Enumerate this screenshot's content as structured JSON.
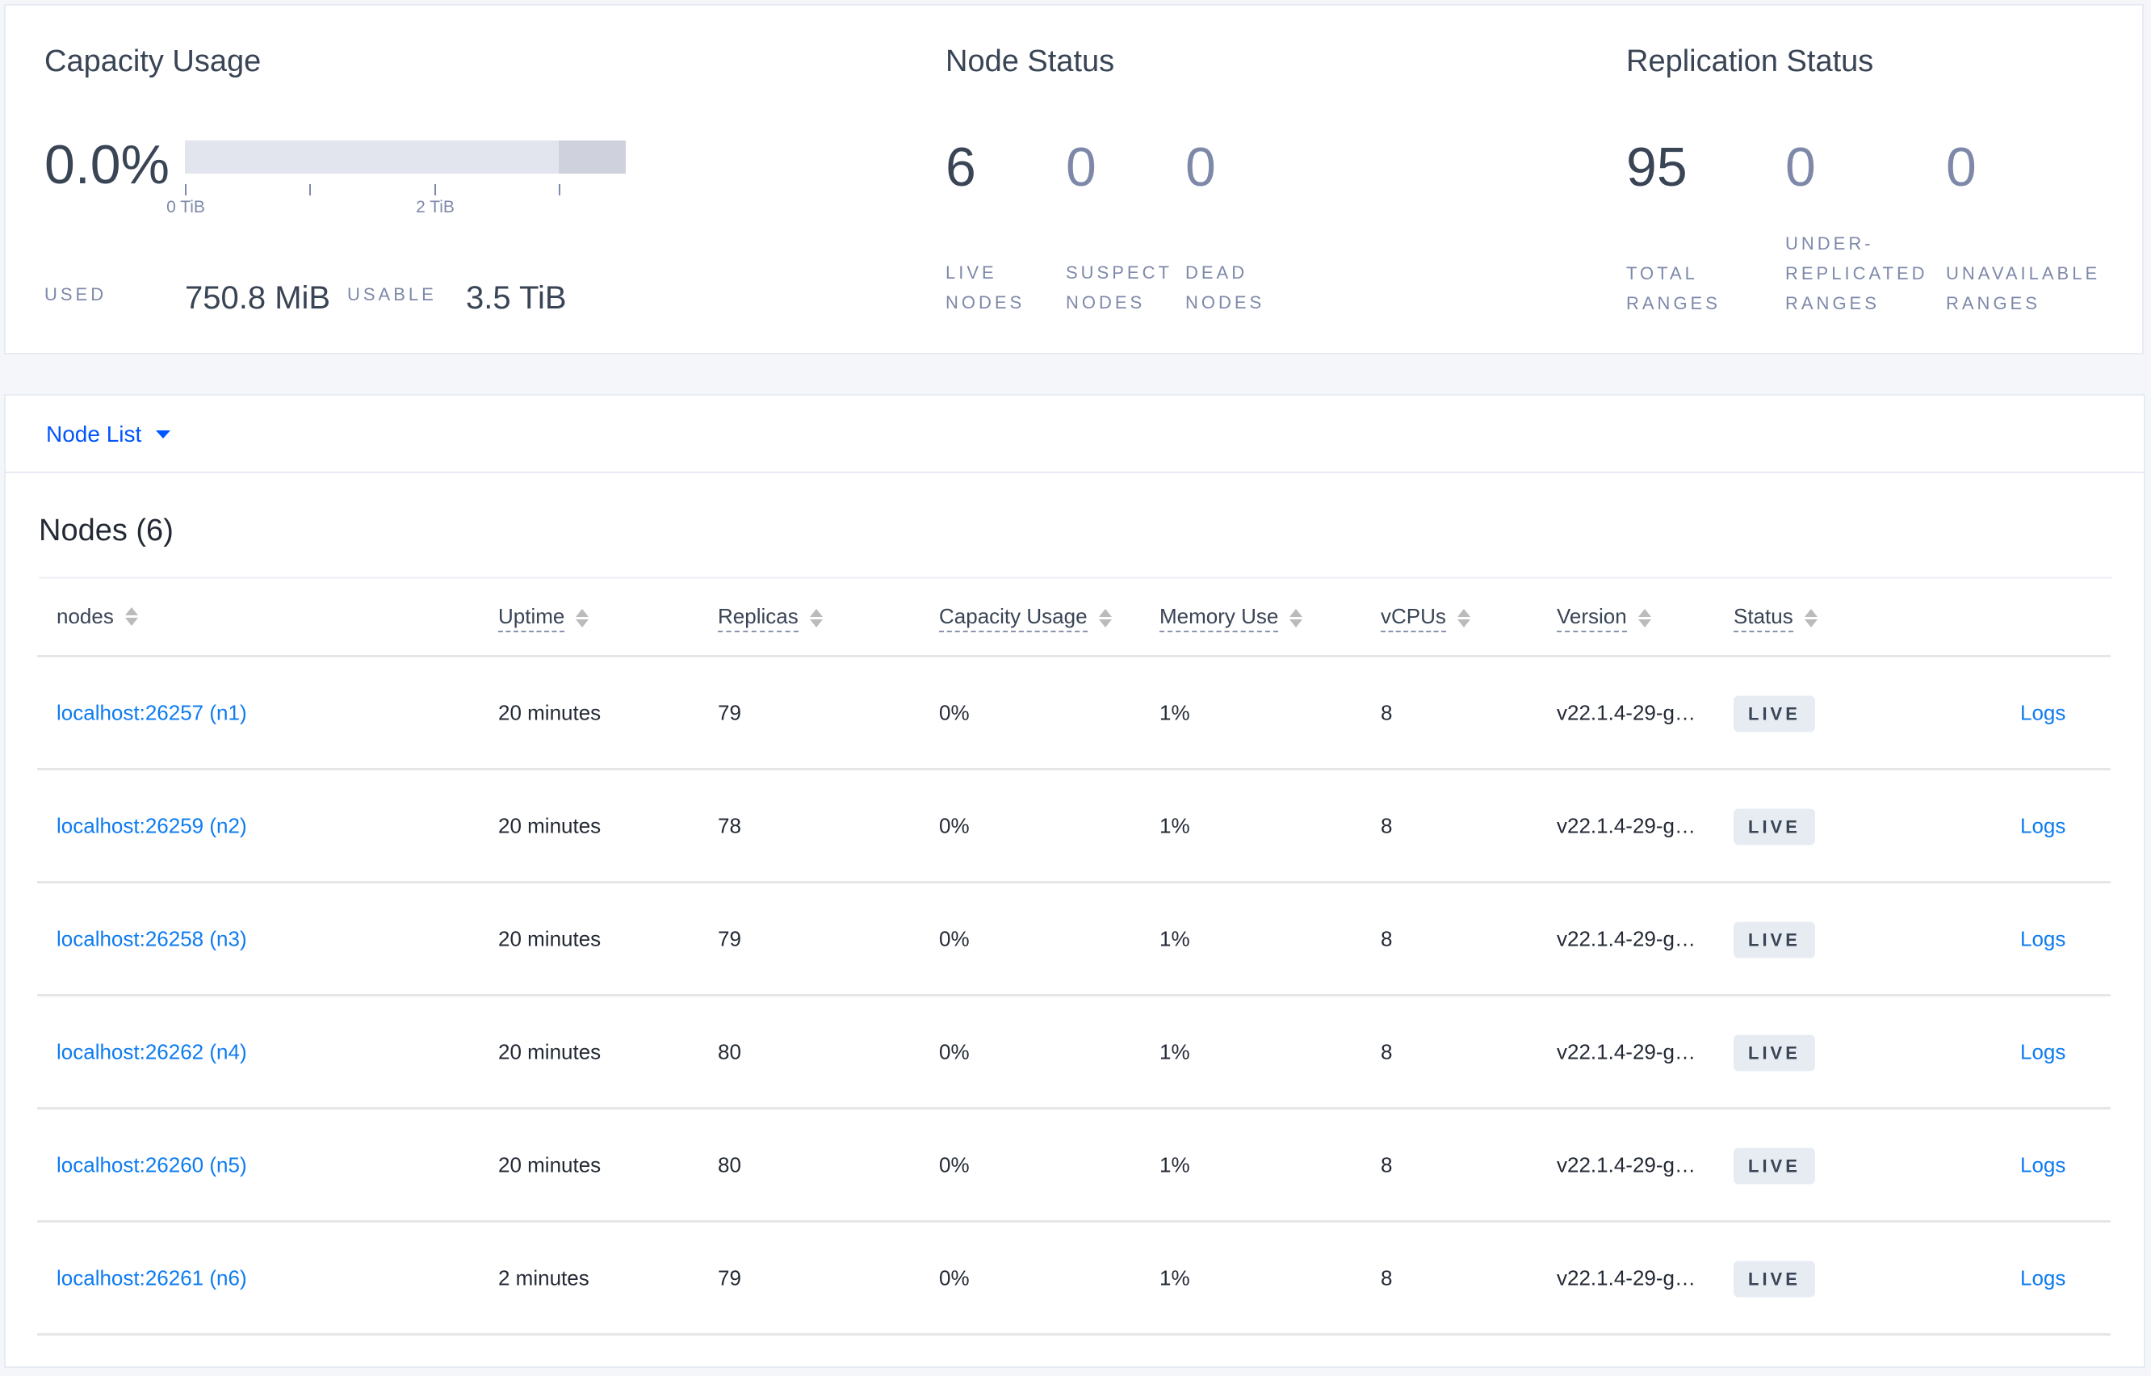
{
  "capacity": {
    "title": "Capacity Usage",
    "percent": "0.0%",
    "usage_fraction": 0.0,
    "ticks": [
      "0 TiB",
      "2 TiB"
    ],
    "used_label": "USED",
    "used_value": "750.8 MiB",
    "usable_label": "USABLE",
    "usable_value": "3.5 TiB"
  },
  "node_status": {
    "title": "Node Status",
    "items": [
      {
        "value": "6",
        "label1": "LIVE",
        "label2": "NODES"
      },
      {
        "value": "0",
        "label1": "SUSPECT",
        "label2": "NODES"
      },
      {
        "value": "0",
        "label1": "DEAD",
        "label2": "NODES"
      }
    ]
  },
  "replication": {
    "title": "Replication Status",
    "items": [
      {
        "value": "95",
        "label1": "",
        "label2": "TOTAL",
        "label3": "RANGES"
      },
      {
        "value": "0",
        "label1": "UNDER-",
        "label2": "REPLICATED",
        "label3": "RANGES"
      },
      {
        "value": "0",
        "label1": "",
        "label2": "UNAVAILABLE",
        "label3": "RANGES"
      }
    ]
  },
  "node_list": {
    "dropdown_label": "Node List",
    "heading": "Nodes (6)",
    "columns": [
      "nodes",
      "Uptime",
      "Replicas",
      "Capacity Usage",
      "Memory Use",
      "vCPUs",
      "Version",
      "Status"
    ],
    "rows": [
      {
        "node": "localhost:26257 (n1)",
        "uptime": "20 minutes",
        "replicas": "79",
        "capacity": "0%",
        "memory": "1%",
        "vcpus": "8",
        "version": "v22.1.4-29-g…",
        "status": "LIVE",
        "logs": "Logs"
      },
      {
        "node": "localhost:26259 (n2)",
        "uptime": "20 minutes",
        "replicas": "78",
        "capacity": "0%",
        "memory": "1%",
        "vcpus": "8",
        "version": "v22.1.4-29-g…",
        "status": "LIVE",
        "logs": "Logs"
      },
      {
        "node": "localhost:26258 (n3)",
        "uptime": "20 minutes",
        "replicas": "79",
        "capacity": "0%",
        "memory": "1%",
        "vcpus": "8",
        "version": "v22.1.4-29-g…",
        "status": "LIVE",
        "logs": "Logs"
      },
      {
        "node": "localhost:26262 (n4)",
        "uptime": "20 minutes",
        "replicas": "80",
        "capacity": "0%",
        "memory": "1%",
        "vcpus": "8",
        "version": "v22.1.4-29-g…",
        "status": "LIVE",
        "logs": "Logs"
      },
      {
        "node": "localhost:26260 (n5)",
        "uptime": "20 minutes",
        "replicas": "80",
        "capacity": "0%",
        "memory": "1%",
        "vcpus": "8",
        "version": "v22.1.4-29-g…",
        "status": "LIVE",
        "logs": "Logs"
      },
      {
        "node": "localhost:26261 (n6)",
        "uptime": "2 minutes",
        "replicas": "79",
        "capacity": "0%",
        "memory": "1%",
        "vcpus": "8",
        "version": "v22.1.4-29-g…",
        "status": "LIVE",
        "logs": "Logs"
      }
    ]
  },
  "colors": {
    "link": "#0e7cf0",
    "text": "#394455",
    "muted": "#7e89a9",
    "badge": "#e7ecf3"
  }
}
